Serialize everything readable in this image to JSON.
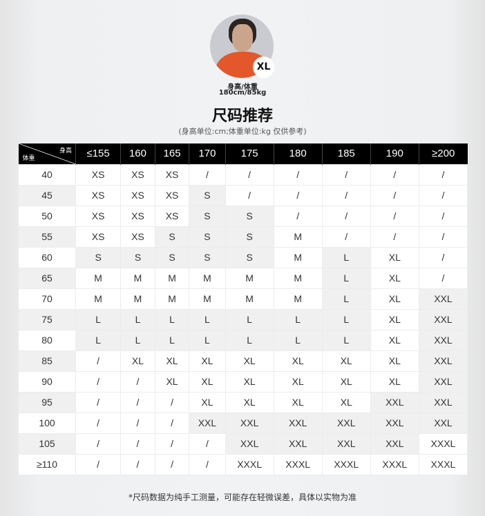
{
  "model": {
    "size_badge": "XL",
    "label": "身高/体重",
    "value": "180cm/85kg"
  },
  "title": "尺码推荐",
  "subtitle": "(身高单位:cm;体重单位:kg 仅供参考)",
  "table": {
    "corner_height": "身高",
    "corner_weight": "体重",
    "heights": [
      "≤155",
      "160",
      "165",
      "170",
      "175",
      "180",
      "185",
      "190",
      "≥200"
    ],
    "rows": [
      {
        "w": "40",
        "s": [
          "XS",
          "XS",
          "XS",
          "/",
          "/",
          "/",
          "/",
          "/",
          "/"
        ]
      },
      {
        "w": "45",
        "s": [
          "XS",
          "XS",
          "XS",
          "S",
          "/",
          "/",
          "/",
          "/",
          "/"
        ]
      },
      {
        "w": "50",
        "s": [
          "XS",
          "XS",
          "XS",
          "S",
          "S",
          "/",
          "/",
          "/",
          "/"
        ]
      },
      {
        "w": "55",
        "s": [
          "XS",
          "XS",
          "S",
          "S",
          "S",
          "M",
          "/",
          "/",
          "/"
        ]
      },
      {
        "w": "60",
        "s": [
          "S",
          "S",
          "S",
          "S",
          "S",
          "M",
          "L",
          "XL",
          "/"
        ]
      },
      {
        "w": "65",
        "s": [
          "M",
          "M",
          "M",
          "M",
          "M",
          "M",
          "L",
          "XL",
          "/"
        ]
      },
      {
        "w": "70",
        "s": [
          "M",
          "M",
          "M",
          "M",
          "M",
          "M",
          "L",
          "XL",
          "XXL"
        ]
      },
      {
        "w": "75",
        "s": [
          "L",
          "L",
          "L",
          "L",
          "L",
          "L",
          "L",
          "XL",
          "XXL"
        ]
      },
      {
        "w": "80",
        "s": [
          "L",
          "L",
          "L",
          "L",
          "L",
          "L",
          "L",
          "XL",
          "XXL"
        ]
      },
      {
        "w": "85",
        "s": [
          "/",
          "XL",
          "XL",
          "XL",
          "XL",
          "XL",
          "XL",
          "XL",
          "XXL"
        ]
      },
      {
        "w": "90",
        "s": [
          "/",
          "/",
          "XL",
          "XL",
          "XL",
          "XL",
          "XL",
          "XL",
          "XXL"
        ]
      },
      {
        "w": "95",
        "s": [
          "/",
          "/",
          "/",
          "XL",
          "XL",
          "XL",
          "XL",
          "XXL",
          "XXL"
        ]
      },
      {
        "w": "100",
        "s": [
          "/",
          "/",
          "/",
          "XXL",
          "XXL",
          "XXL",
          "XXL",
          "XXL",
          "XXL"
        ]
      },
      {
        "w": "105",
        "s": [
          "/",
          "/",
          "/",
          "/",
          "XXL",
          "XXL",
          "XXL",
          "XXL",
          "XXXL"
        ]
      },
      {
        "w": "≥110",
        "s": [
          "/",
          "/",
          "/",
          "/",
          "XXXL",
          "XXXL",
          "XXXL",
          "XXXL",
          "XXXL"
        ]
      }
    ]
  },
  "footnote": "*尺码数据为纯手工测量，可能存在轻微误差，具体以实物为准"
}
